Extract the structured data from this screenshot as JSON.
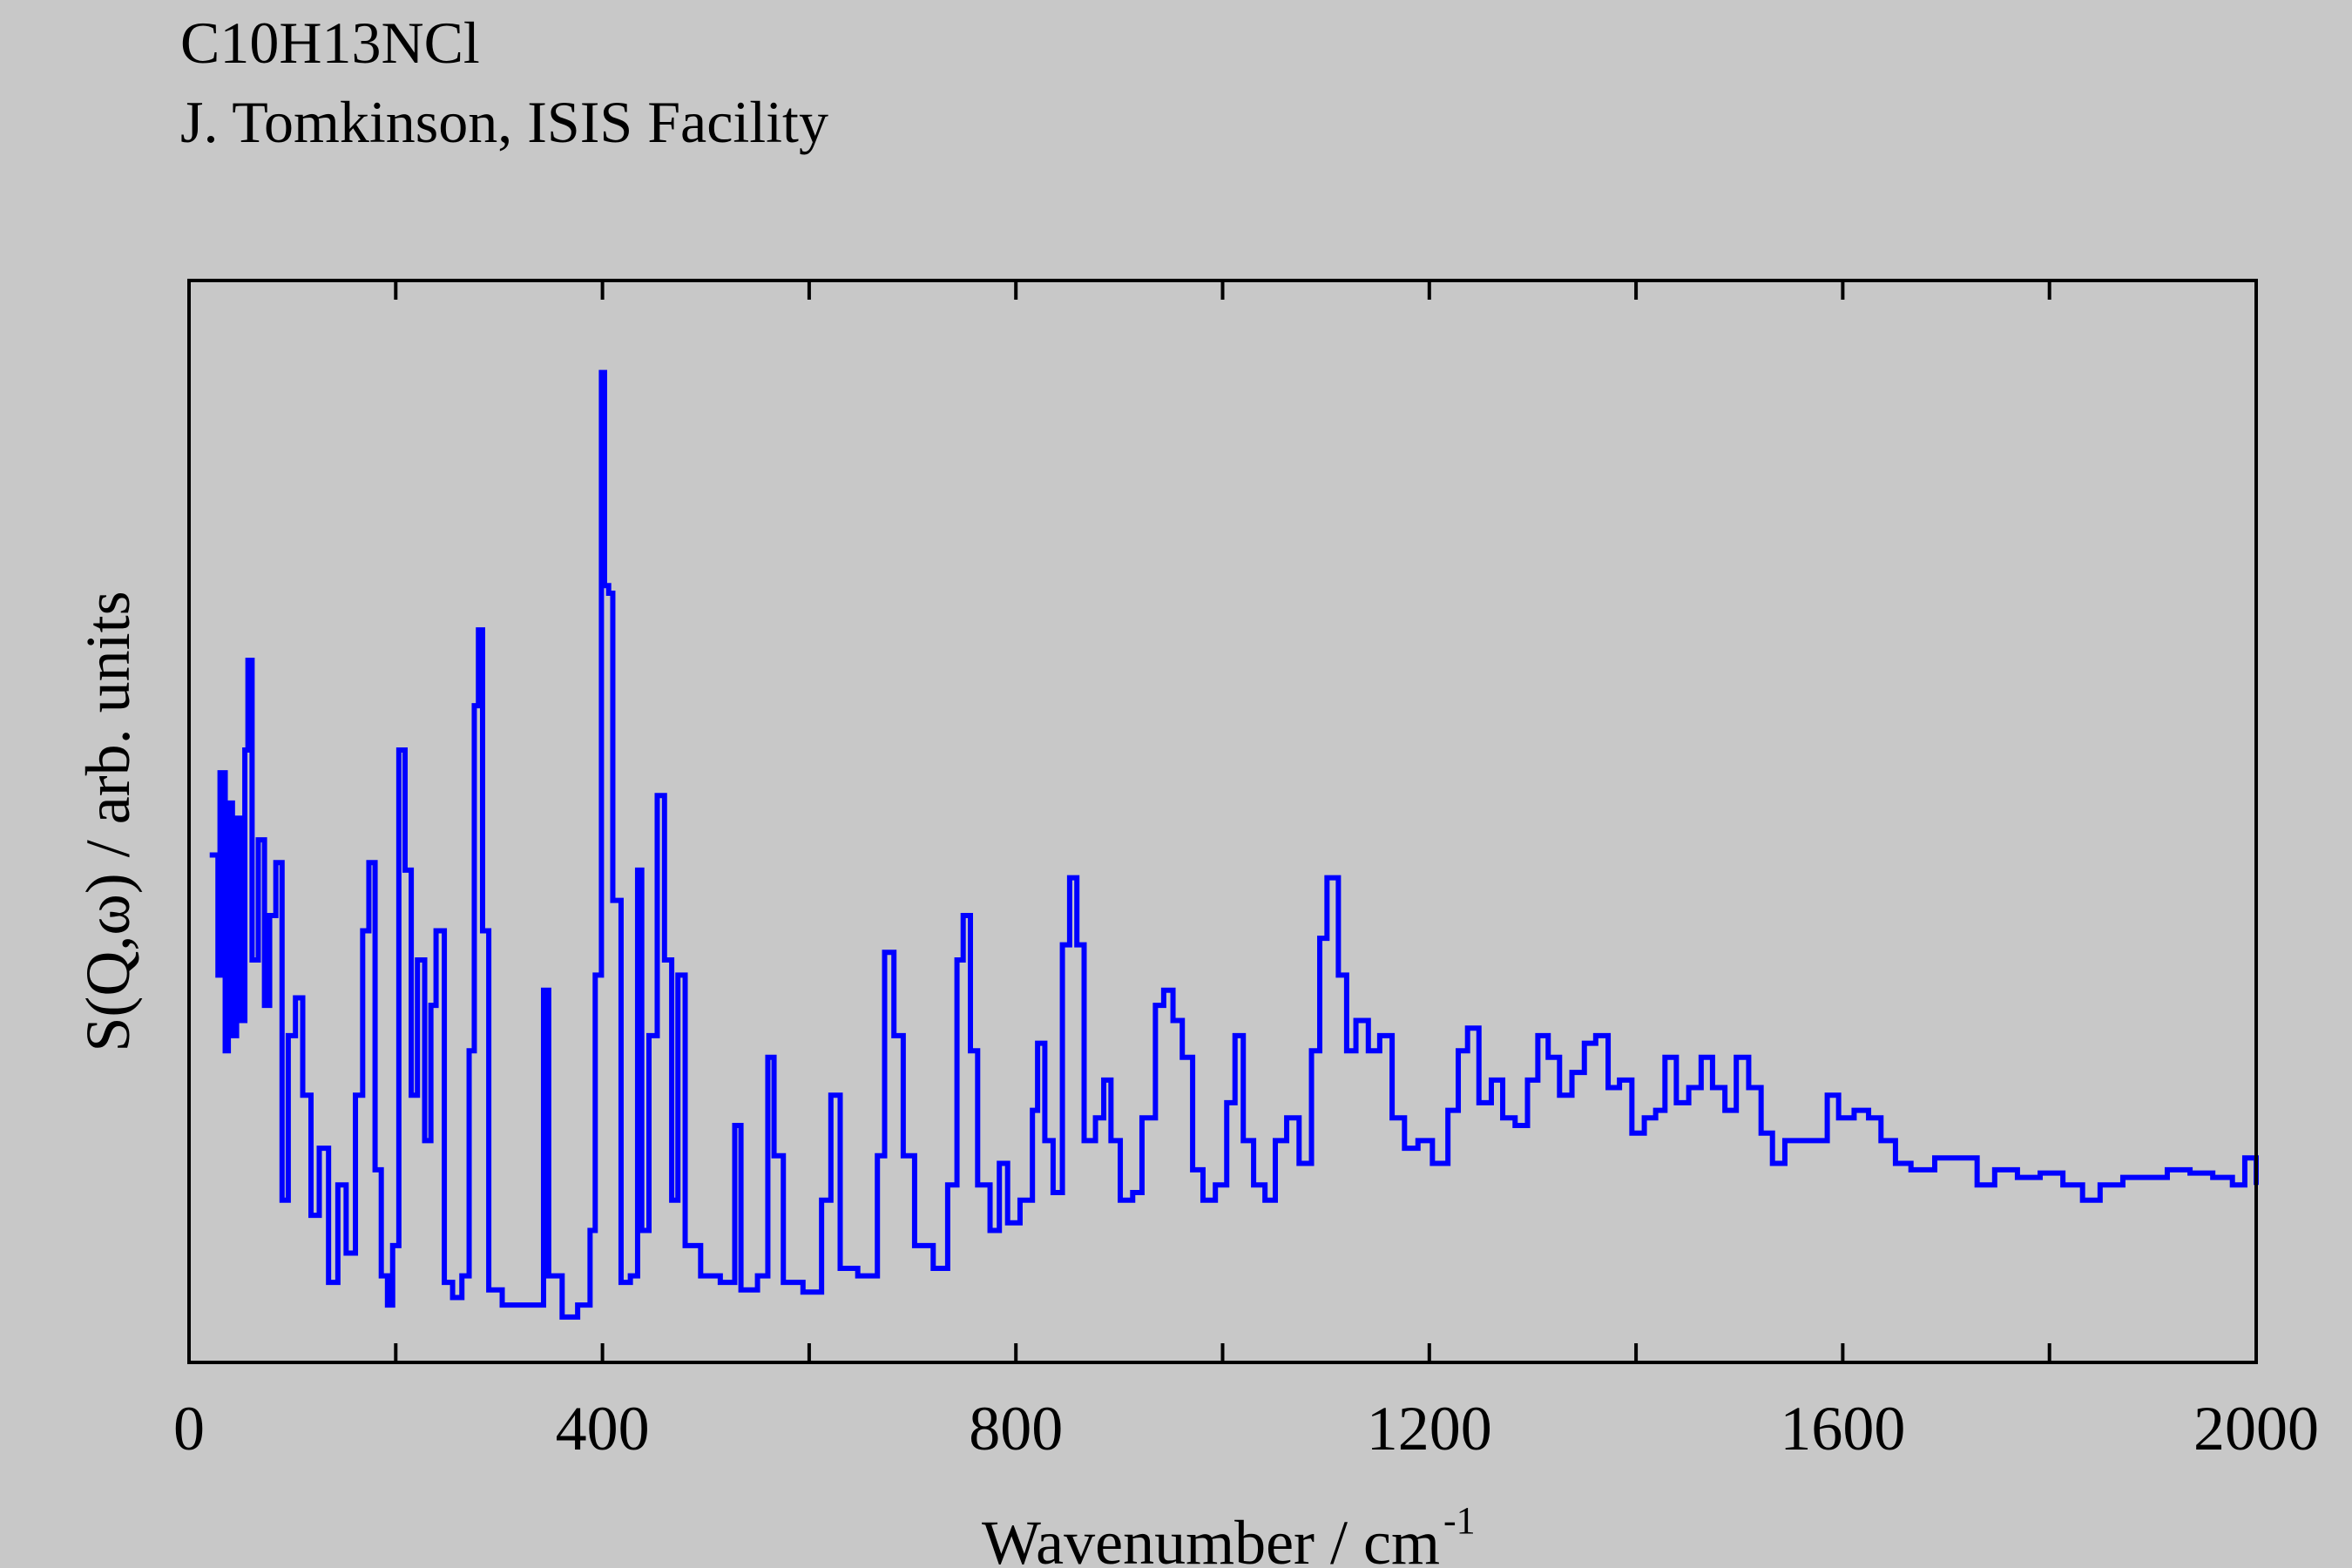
{
  "chart_data": {
    "type": "line",
    "title": "C10H13NCl",
    "subtitle": "J. Tomkinson, ISIS Facility",
    "xlabel": "Wavenumber / cm",
    "xlabel_superscript": "-1",
    "ylabel": "S(Q,ω) / arb. units",
    "xlim": [
      0,
      2000
    ],
    "ylim": [
      0,
      100
    ],
    "xticks": [
      0,
      400,
      800,
      1200,
      1600,
      2000
    ],
    "xminor_ticks": [
      200,
      600,
      1000,
      1400,
      1800
    ],
    "drawstyle": "steps",
    "series": [
      {
        "color": "#0000ff",
        "x": [
          20,
          28,
          30,
          35,
          38,
          42,
          46,
          49,
          54,
          57,
          61,
          67,
          73,
          78,
          84,
          90,
          96,
          103,
          110,
          118,
          126,
          135,
          144,
          152,
          161,
          168,
          174,
          180,
          186,
          192,
          197,
          203,
          209,
          215,
          221,
          228,
          234,
          239,
          247,
          255,
          264,
          271,
          276,
          280,
          284,
          290,
          303,
          318,
          332,
          343,
          348,
          361,
          376,
          388,
          393,
          399,
          402,
          406,
          410,
          418,
          427,
          434,
          438,
          445,
          453,
          460,
          467,
          473,
          480,
          495,
          514,
          528,
          534,
          550,
          560,
          566,
          575,
          594,
          612,
          621,
          630,
          647,
          666,
          673,
          682,
          691,
          702,
          720,
          734,
          743,
          749,
          756,
          763,
          775,
          784,
          792,
          804,
          816,
          821,
          828,
          836,
          845,
          852,
          859,
          866,
          877,
          885,
          892,
          901,
          913,
          922,
          935,
          943,
          952,
          961,
          971,
          981,
          993,
          1004,
          1012,
          1020,
          1030,
          1041,
          1051,
          1062,
          1074,
          1086,
          1094,
          1101,
          1112,
          1120,
          1129,
          1141,
          1152,
          1164,
          1176,
          1189,
          1203,
          1218,
          1228,
          1237,
          1248,
          1260,
          1271,
          1283,
          1295,
          1305,
          1315,
          1326,
          1338,
          1350,
          1361,
          1373,
          1384,
          1396,
          1408,
          1419,
          1428,
          1439,
          1451,
          1463,
          1474,
          1486,
          1497,
          1509,
          1521,
          1532,
          1544,
          1559,
          1573,
          1585,
          1596,
          1611,
          1625,
          1637,
          1651,
          1666,
          1689,
          1711,
          1730,
          1747,
          1769,
          1791,
          1813,
          1832,
          1849,
          1871,
          1893,
          1914,
          1936,
          1958,
          1977,
          1989,
          2000
        ],
        "values": [
          46.9,
          35.8,
          54.5,
          28.8,
          51.7,
          30.2,
          50.3,
          31.6,
          56.6,
          64.9,
          37.2,
          48.3,
          33,
          41.3,
          46.2,
          15,
          30.2,
          33.7,
          24.7,
          13.6,
          19.8,
          7.4,
          16.4,
          10.1,
          24.7,
          39.9,
          46.2,
          17.8,
          8,
          5.3,
          10.8,
          56.6,
          45.5,
          24.7,
          37.2,
          20.5,
          33,
          39.9,
          7.4,
          6,
          8,
          28.8,
          60.7,
          67.7,
          39.9,
          6.7,
          5.3,
          5.3,
          5.3,
          34.4,
          8,
          4.2,
          5.3,
          12.2,
          35.8,
          91.5,
          71.8,
          71.1,
          42.7,
          7.4,
          8,
          45.5,
          12.2,
          30.2,
          52.4,
          37.2,
          15,
          35.8,
          10.8,
          8,
          7.4,
          21.9,
          6.7,
          8,
          28.2,
          19.1,
          7.4,
          6.5,
          15,
          24.7,
          8.7,
          8,
          19.1,
          37.9,
          30.2,
          19.1,
          10.8,
          8.7,
          16.4,
          37.2,
          41.3,
          28.8,
          16.4,
          12.2,
          18.4,
          12.9,
          15,
          23.3,
          29.5,
          20.5,
          15.7,
          38.6,
          44.8,
          38.6,
          20.5,
          22.6,
          26.1,
          20.5,
          15,
          15.7,
          22.6,
          33,
          34.4,
          31.6,
          28.2,
          17.8,
          15,
          16.4,
          24,
          30.2,
          20.5,
          16.4,
          15,
          20.5,
          22.6,
          18.4,
          28.8,
          39.2,
          44.8,
          35.8,
          28.8,
          31.6,
          28.8,
          30.2,
          22.6,
          19.8,
          20.5,
          18.4,
          23.3,
          28.8,
          30.9,
          24,
          26.1,
          22.6,
          21.9,
          26.1,
          30.2,
          28.2,
          24.7,
          26.8,
          29.5,
          30.2,
          25.4,
          26.1,
          21.2,
          22.6,
          23.3,
          28.2,
          24,
          25.4,
          28.2,
          25.4,
          23.3,
          28.2,
          25.4,
          21.2,
          18.4,
          20.5,
          20.5,
          20.5,
          24.7,
          22.6,
          23.3,
          22.6,
          20.5,
          18.4,
          17.8,
          18.9,
          18.9,
          16.4,
          17.8,
          17.1,
          17.5,
          16.4,
          15,
          16.4,
          17.1,
          17.1,
          17.8,
          17.5,
          17.1,
          16.4,
          18.9,
          16.4
        ]
      }
    ]
  }
}
